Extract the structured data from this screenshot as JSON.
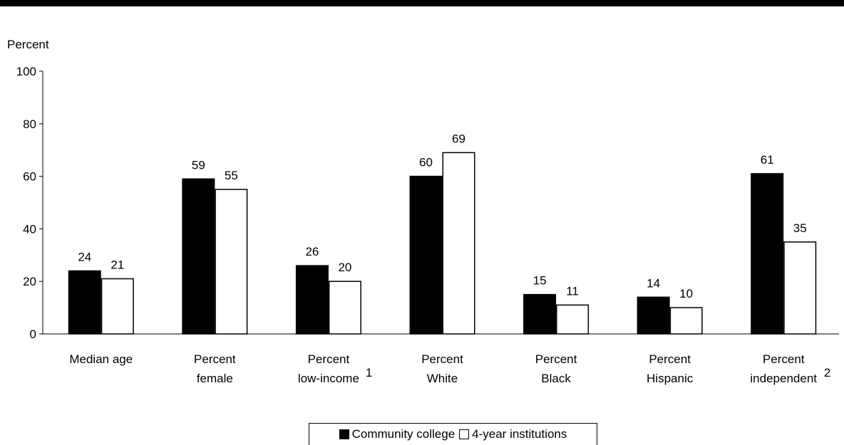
{
  "chart_data": {
    "type": "bar",
    "ylabel": "Percent",
    "ylim": [
      0,
      100
    ],
    "yticks": [
      0,
      20,
      40,
      60,
      80,
      100
    ],
    "grid": false,
    "legend_position": "bottom",
    "categories": [
      {
        "lines": [
          "Median age"
        ],
        "footnote": ""
      },
      {
        "lines": [
          "Percent",
          "female"
        ],
        "footnote": ""
      },
      {
        "lines": [
          "Percent",
          "low-income"
        ],
        "footnote": "1"
      },
      {
        "lines": [
          "Percent",
          "White"
        ],
        "footnote": ""
      },
      {
        "lines": [
          "Percent",
          "Black"
        ],
        "footnote": ""
      },
      {
        "lines": [
          "Percent",
          "Hispanic"
        ],
        "footnote": ""
      },
      {
        "lines": [
          "Percent",
          "independent"
        ],
        "footnote": "2"
      }
    ],
    "series": [
      {
        "name": "Community college",
        "color": "#000000",
        "values": [
          24,
          59,
          26,
          60,
          15,
          14,
          61
        ]
      },
      {
        "name": "4-year institutions",
        "color": "#ffffff",
        "values": [
          21,
          55,
          20,
          69,
          11,
          10,
          35
        ]
      }
    ]
  }
}
